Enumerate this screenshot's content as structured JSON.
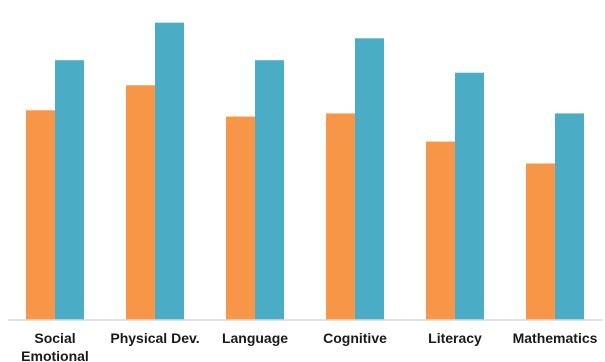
{
  "chart_data": {
    "type": "bar",
    "categories": [
      [
        "Social",
        "Emotional"
      ],
      [
        "Physical Dev."
      ],
      [
        "Language"
      ],
      [
        "Cognitive"
      ],
      [
        "Literacy"
      ],
      [
        "Mathematics"
      ]
    ],
    "series": [
      {
        "color": "#F79646",
        "values": [
          67,
          75,
          65,
          66,
          57,
          50
        ]
      },
      {
        "color": "#4BACC6",
        "values": [
          83,
          95,
          83,
          90,
          79,
          66
        ]
      }
    ],
    "ylim": [
      0,
      100
    ],
    "grid": false,
    "legend": "none",
    "xlabel": "",
    "ylabel": "",
    "title": ""
  }
}
